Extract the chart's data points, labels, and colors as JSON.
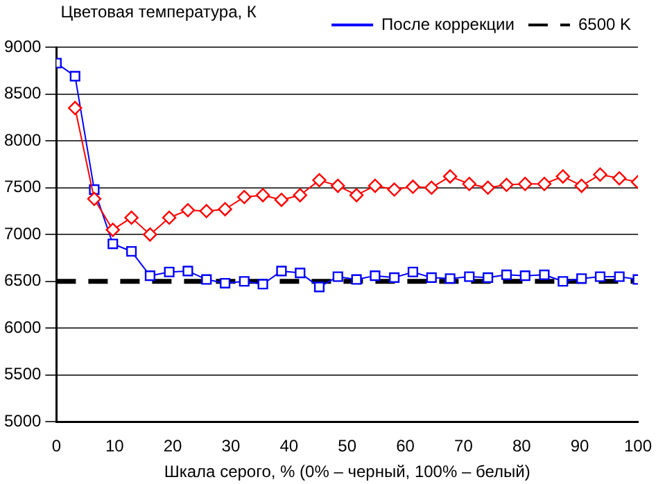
{
  "chart_data": {
    "type": "line",
    "ylabel": "Цветовая температура, К",
    "xlabel": "Шкала серого, % (0% – черный, 100% – белый)",
    "xlim": [
      0,
      100
    ],
    "xticks": [
      0,
      10,
      20,
      30,
      40,
      50,
      60,
      70,
      80,
      90,
      100
    ],
    "ylim": [
      5000,
      9000
    ],
    "yticks": [
      5000,
      5500,
      6000,
      6500,
      7000,
      7500,
      8000,
      8500,
      9000
    ],
    "grid": "y",
    "legend": "top right",
    "series": [
      {
        "color": "#ff0000",
        "marker": "diamond",
        "x": [
          3.2,
          6.5,
          9.7,
          12.9,
          16.1,
          19.4,
          22.6,
          25.8,
          29,
          32.3,
          35.5,
          38.7,
          41.9,
          45.2,
          48.4,
          51.6,
          54.8,
          58.1,
          61.3,
          64.5,
          67.7,
          71,
          74.2,
          77.4,
          80.6,
          83.9,
          87.1,
          90.3,
          93.5,
          96.8,
          100
        ],
        "values": [
          8350,
          7380,
          7050,
          7180,
          7000,
          7180,
          7260,
          7250,
          7270,
          7400,
          7420,
          7370,
          7420,
          7580,
          7520,
          7420,
          7520,
          7480,
          7510,
          7500,
          7620,
          7540,
          7500,
          7530,
          7540,
          7540,
          7620,
          7520,
          7640,
          7600,
          7560
        ]
      },
      {
        "name": "После коррекции",
        "color": "#0000ff",
        "marker": "square",
        "x": [
          0,
          3.2,
          6.5,
          9.7,
          12.9,
          16.1,
          19.4,
          22.6,
          25.8,
          29,
          32.3,
          35.5,
          38.7,
          41.9,
          45.2,
          48.4,
          51.6,
          54.8,
          58.1,
          61.3,
          64.5,
          67.7,
          71,
          74.2,
          77.4,
          80.6,
          83.9,
          87.1,
          90.3,
          93.5,
          96.8,
          100
        ],
        "values": [
          8830,
          8690,
          7480,
          6900,
          6820,
          6560,
          6600,
          6610,
          6520,
          6480,
          6500,
          6470,
          6610,
          6590,
          6440,
          6550,
          6520,
          6560,
          6540,
          6600,
          6540,
          6530,
          6550,
          6540,
          6570,
          6560,
          6570,
          6500,
          6530,
          6550,
          6550,
          6520
        ]
      },
      {
        "name": "6500 K",
        "color": "#000000",
        "marker": "none",
        "line_style": "dashed",
        "x": [
          0,
          100
        ],
        "values": [
          6500,
          6500
        ]
      }
    ]
  }
}
